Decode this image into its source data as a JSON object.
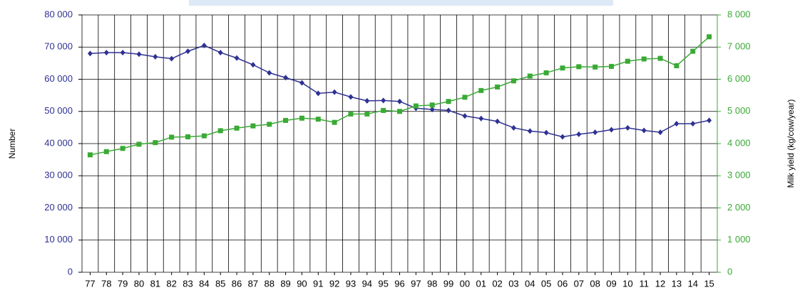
{
  "chart_data": {
    "type": "line",
    "y_label": "Number",
    "y2_label": "Milk yield (kg/cow/year)",
    "categories": [
      "77",
      "78",
      "79",
      "80",
      "81",
      "82",
      "83",
      "84",
      "85",
      "86",
      "87",
      "88",
      "89",
      "90",
      "91",
      "92",
      "93",
      "94",
      "95",
      "96",
      "97",
      "98",
      "99",
      "00",
      "01",
      "02",
      "03",
      "04",
      "05",
      "06",
      "07",
      "08",
      "09",
      "10",
      "11",
      "12",
      "13",
      "14",
      "15"
    ],
    "series": [
      {
        "color": "#2e3192",
        "marker": "diamond",
        "values": [
          68000,
          68300,
          68300,
          67800,
          67000,
          66400,
          68700,
          70500,
          68300,
          66600,
          64500,
          62000,
          60500,
          58900,
          55600,
          56000,
          54500,
          53300,
          53400,
          53100,
          51000,
          50600,
          50300,
          48600,
          47800,
          46900,
          44900,
          43900,
          43400,
          42100,
          42900,
          43500,
          44300,
          44900,
          44100,
          43500,
          46200,
          46200,
          47200
        ]
      },
      {
        "color": "#3aaa35",
        "marker": "square",
        "axis": "y2",
        "values": [
          3650,
          3750,
          3850,
          3980,
          4030,
          4200,
          4210,
          4240,
          4400,
          4480,
          4550,
          4600,
          4720,
          4790,
          4760,
          4660,
          4920,
          4920,
          5030,
          5000,
          5170,
          5200,
          5310,
          5440,
          5650,
          5760,
          5950,
          6100,
          6200,
          6350,
          6390,
          6380,
          6400,
          6560,
          6630,
          6650,
          6420,
          6870,
          7320
        ]
      }
    ],
    "ylim": [
      0,
      80000
    ],
    "yticks": [
      0,
      {
        "value": 10000,
        "label": "10 000"
      },
      {
        "value": 20000,
        "label": "20 000"
      },
      {
        "value": 30000,
        "label": "30 000"
      },
      {
        "value": 40000,
        "label": "40 000"
      },
      {
        "value": 50000,
        "label": "50 000"
      },
      {
        "value": 60000,
        "label": "60 000"
      },
      {
        "value": 70000,
        "label": "70 000"
      },
      {
        "value": 80000,
        "label": "80 000"
      }
    ],
    "y2lim": [
      0,
      8000
    ],
    "y2ticks": [
      0,
      {
        "value": 1000,
        "label": "1 000"
      },
      {
        "value": 2000,
        "label": "2 000"
      },
      {
        "value": 3000,
        "label": "3 000"
      },
      {
        "value": 4000,
        "label": "4 000"
      },
      {
        "value": 5000,
        "label": "5 000"
      },
      {
        "value": 6000,
        "label": "6 000"
      },
      {
        "value": 7000,
        "label": "7 000"
      },
      {
        "value": 8000,
        "label": "8 000"
      }
    ],
    "grid": true
  }
}
